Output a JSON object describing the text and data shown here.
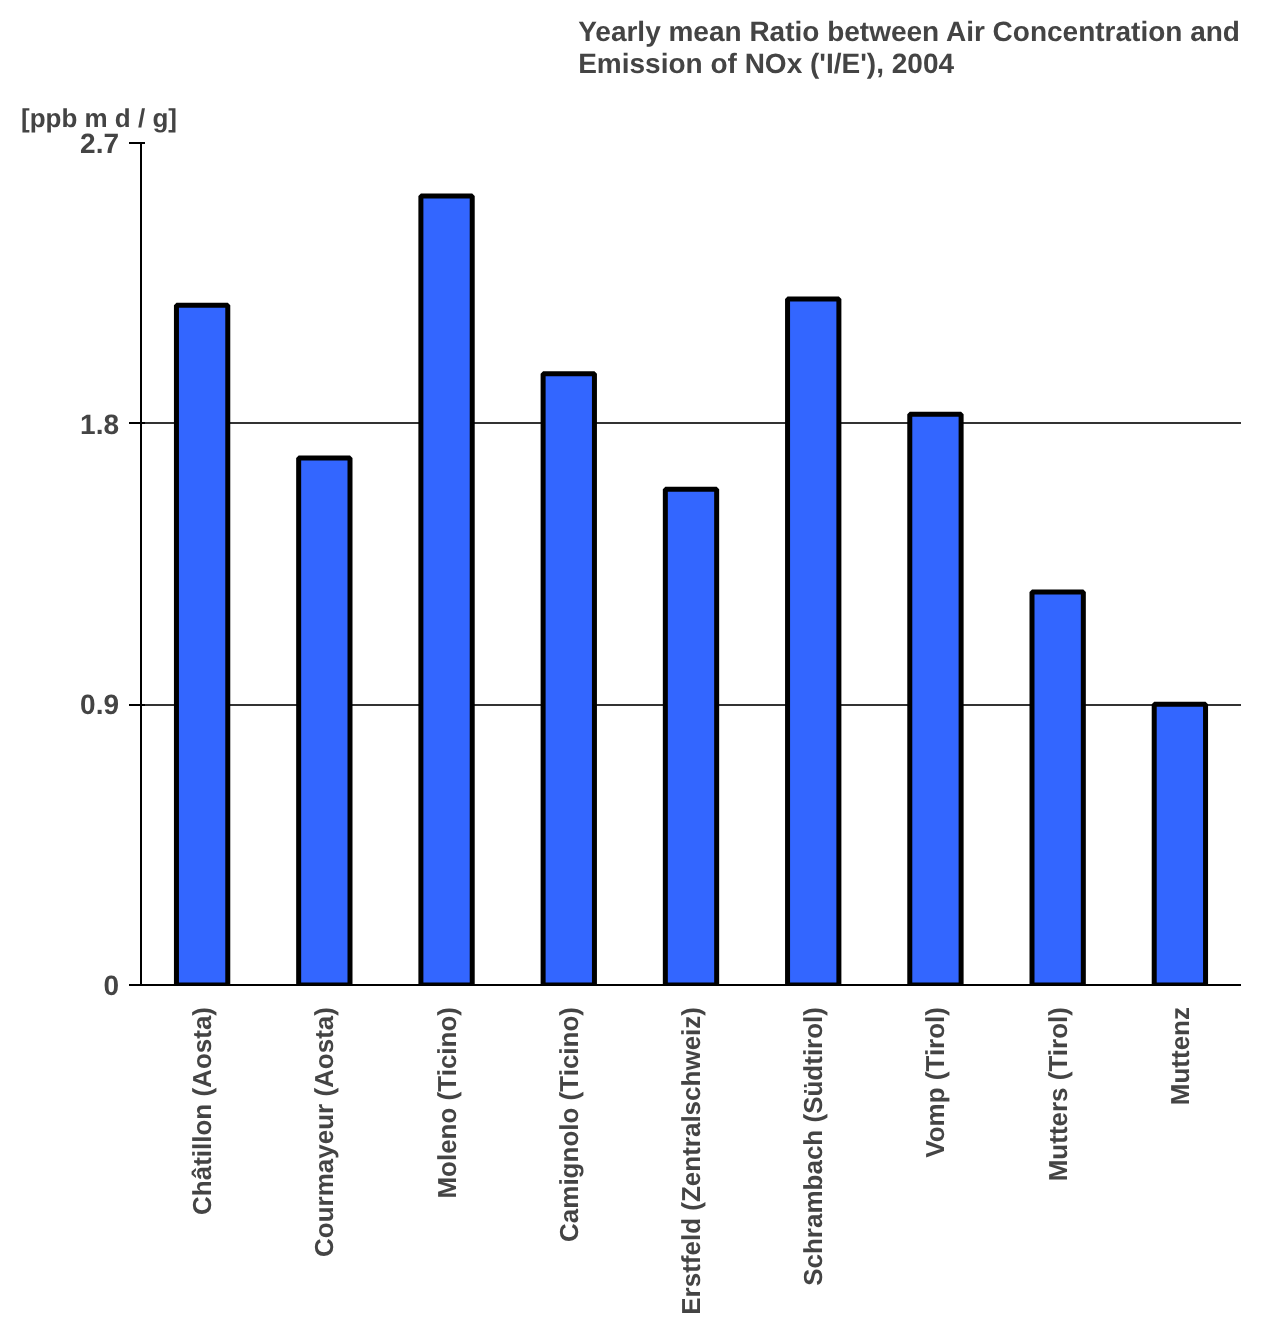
{
  "chart_data": {
    "type": "bar",
    "title": "Yearly mean Ratio between Air Concentration and\nEmission of NOx ('I/E'), 2004",
    "ylabel": "[ppb m d / g]",
    "categories": [
      "Châtillon (Aosta)",
      "Courmayeur (Aosta)",
      "Moleno (Ticino)",
      "Camignolo (Ticino)",
      "Erstfeld (Zentralschweiz)",
      "Schrambach (Südtirol)",
      "Vomp (Tirol)",
      "Mutters (Tirol)",
      "Muttenz"
    ],
    "values": [
      2.18,
      1.69,
      2.53,
      1.96,
      1.59,
      2.2,
      1.83,
      1.26,
      0.9
    ],
    "color": "#3366ff",
    "ylim": [
      0,
      2.7
    ],
    "yticks": [
      0,
      0.9,
      1.8,
      2.7
    ],
    "grid": "y"
  }
}
